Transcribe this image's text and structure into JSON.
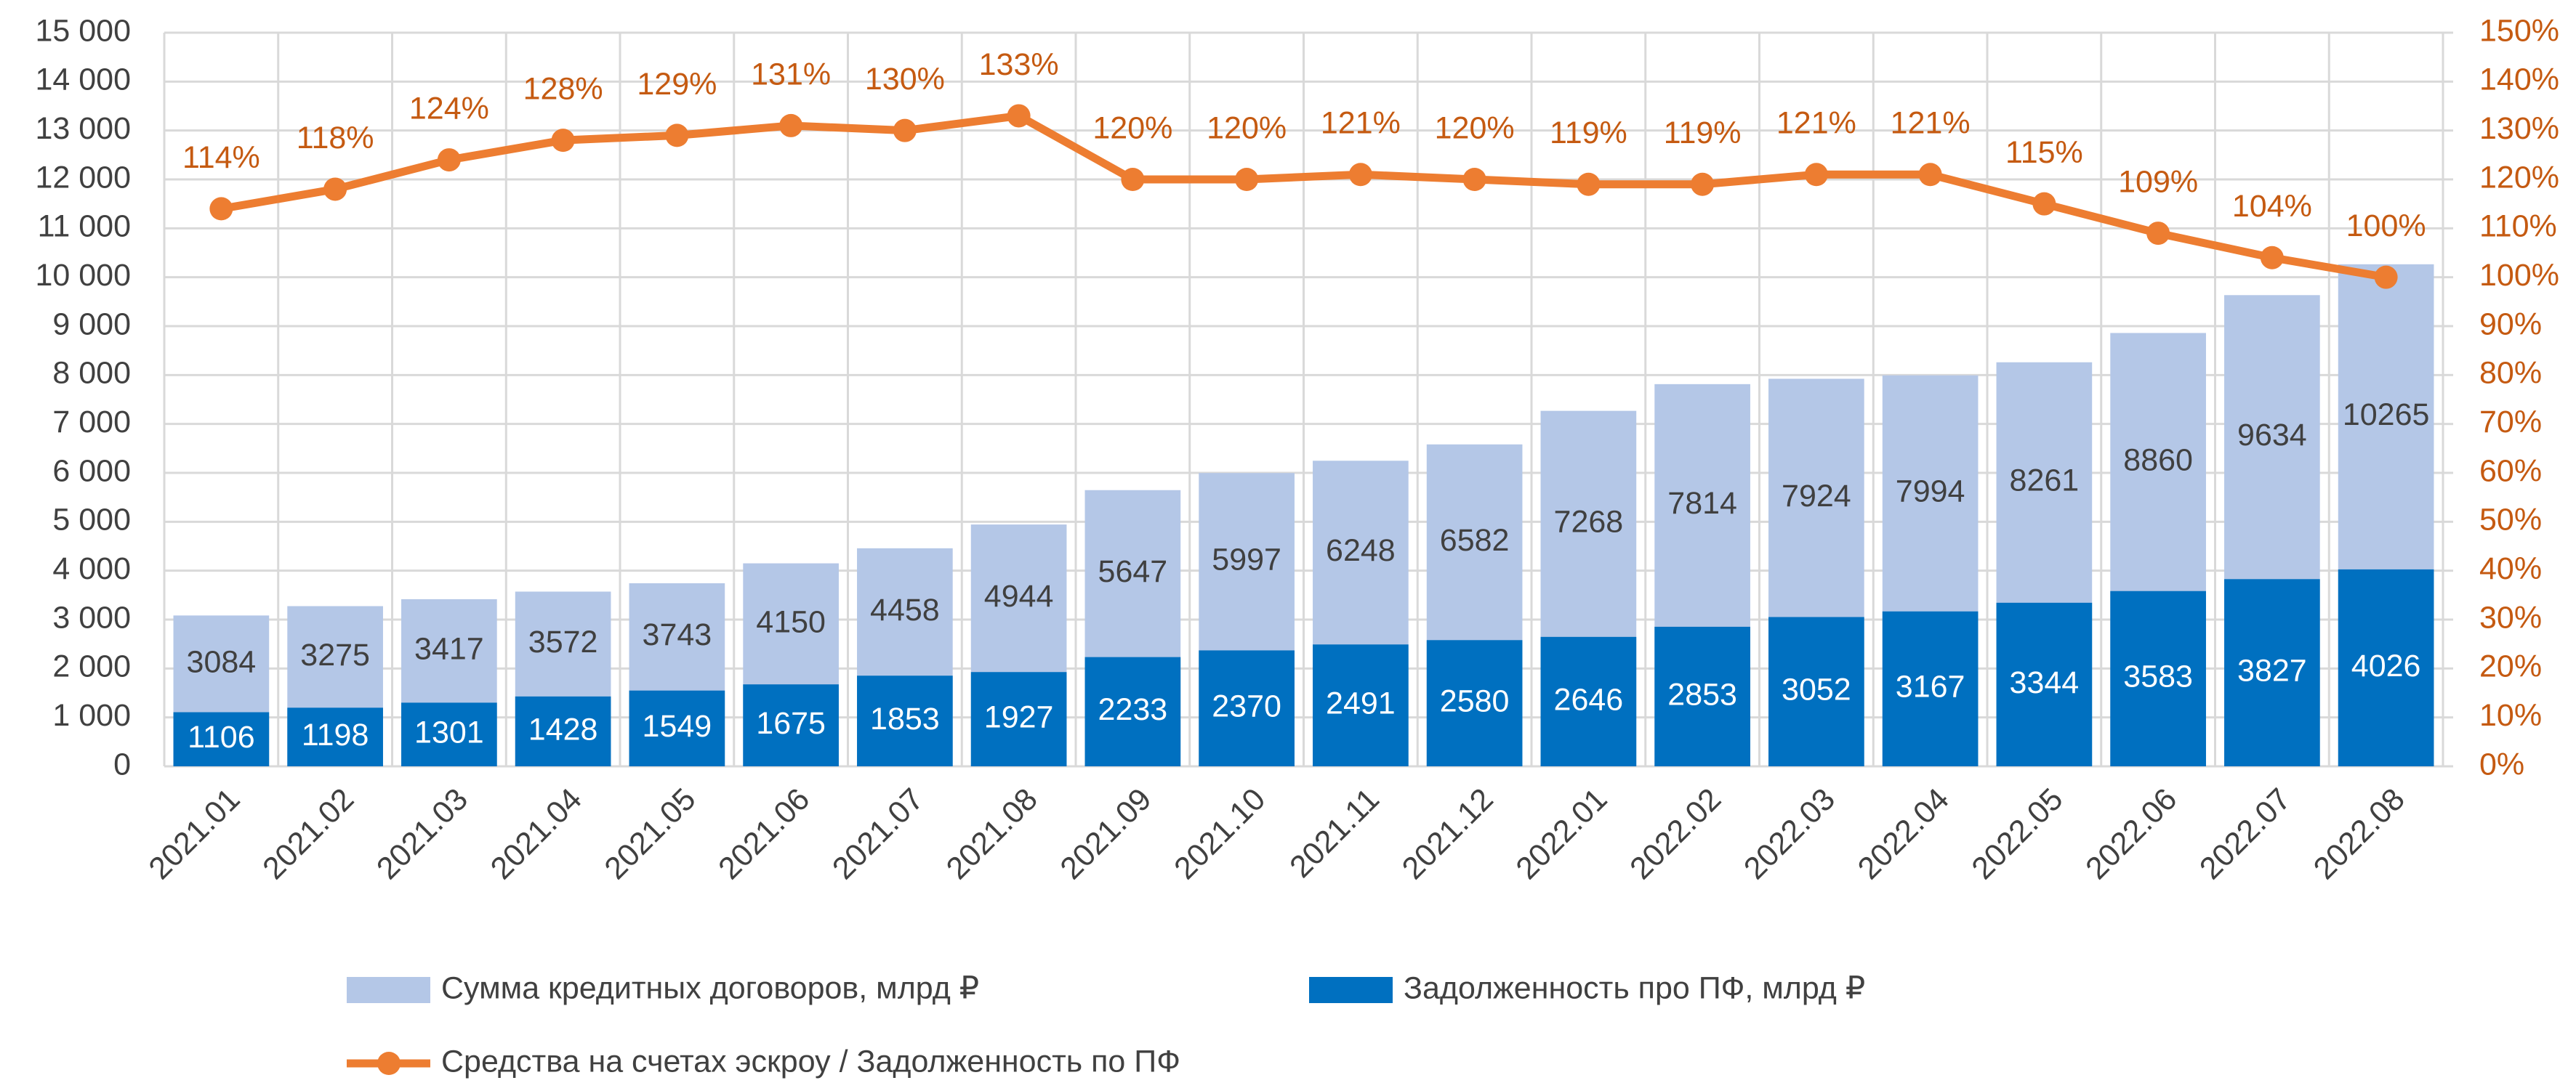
{
  "chart_data": {
    "type": "bar",
    "overlap": true,
    "categories": [
      "2021.01",
      "2021.02",
      "2021.03",
      "2021.04",
      "2021.05",
      "2021.06",
      "2021.07",
      "2021.08",
      "2021.09",
      "2021.10",
      "2021.11",
      "2021.12",
      "2022.01",
      "2022.02",
      "2022.03",
      "2022.04",
      "2022.05",
      "2022.06",
      "2022.07",
      "2022.08"
    ],
    "series": [
      {
        "name": "Сумма кредитных договоров, млрд ₽",
        "color": "#b4c7e7",
        "type": "bar",
        "values": [
          3084,
          3275,
          3417,
          3572,
          3743,
          4150,
          4458,
          4944,
          5647,
          5997,
          6248,
          6582,
          7268,
          7814,
          7924,
          7994,
          8261,
          8860,
          9634,
          10265
        ]
      },
      {
        "name": "Задолженность про ПФ, млрд ₽",
        "color": "#0070c0",
        "type": "bar",
        "values": [
          1106,
          1198,
          1301,
          1428,
          1549,
          1675,
          1853,
          1927,
          2233,
          2370,
          2491,
          2580,
          2646,
          2853,
          3052,
          3167,
          3344,
          3583,
          3827,
          4026
        ]
      },
      {
        "name": "Средства на счетах эскроу / Задолженность по ПФ",
        "color": "#ed7d31",
        "type": "line",
        "axis": "y2",
        "values": [
          114,
          118,
          124,
          128,
          129,
          131,
          130,
          133,
          120,
          120,
          121,
          120,
          119,
          119,
          121,
          121,
          115,
          109,
          104,
          100
        ],
        "value_labels": [
          "114%",
          "118%",
          "124%",
          "128%",
          "129%",
          "131%",
          "130%",
          "133%",
          "120%",
          "120%",
          "121%",
          "120%",
          "119%",
          "119%",
          "121%",
          "121%",
          "115%",
          "109%",
          "104%",
          "100%"
        ]
      }
    ],
    "ylim": [
      0,
      15000
    ],
    "yticks": [
      0,
      {
        "value": 1000,
        "label": "1 000"
      },
      {
        "value": 2000,
        "label": "2 000"
      },
      {
        "value": 3000,
        "label": "3 000"
      },
      {
        "value": 4000,
        "label": "4 000"
      },
      {
        "value": 5000,
        "label": "5 000"
      },
      {
        "value": 6000,
        "label": "6 000"
      },
      {
        "value": 7000,
        "label": "7 000"
      },
      {
        "value": 8000,
        "label": "8 000"
      },
      {
        "value": 9000,
        "label": "9 000"
      },
      {
        "value": 10000,
        "label": "10 000"
      },
      {
        "value": 11000,
        "label": "11 000"
      },
      {
        "value": 12000,
        "label": "12 000"
      },
      {
        "value": 13000,
        "label": "13 000"
      },
      {
        "value": 14000,
        "label": "14 000"
      },
      {
        "value": 15000,
        "label": "15 000"
      }
    ],
    "y2lim": [
      0,
      150
    ],
    "y2ticks": [
      {
        "value": 0,
        "label": "0%"
      },
      {
        "value": 10,
        "label": "10%"
      },
      {
        "value": 20,
        "label": "20%"
      },
      {
        "value": 30,
        "label": "30%"
      },
      {
        "value": 40,
        "label": "40%"
      },
      {
        "value": 50,
        "label": "50%"
      },
      {
        "value": 60,
        "label": "60%"
      },
      {
        "value": 70,
        "label": "70%"
      },
      {
        "value": 80,
        "label": "80%"
      },
      {
        "value": 90,
        "label": "90%"
      },
      {
        "value": 100,
        "label": "100%"
      },
      {
        "value": 110,
        "label": "110%"
      },
      {
        "value": 120,
        "label": "120%"
      },
      {
        "value": 130,
        "label": "130%"
      },
      {
        "value": 140,
        "label": "140%"
      },
      {
        "value": 150,
        "label": "150%"
      }
    ],
    "grid": true
  }
}
